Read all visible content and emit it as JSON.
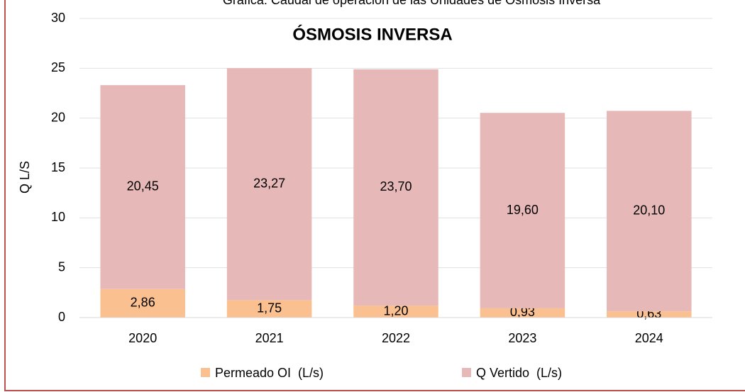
{
  "chart_data": {
    "type": "stacked_bar",
    "subtitle": "Gráfica: Caudal de operación de las Unidades de Ósmosis Inversa",
    "title": "ÓSMOSIS INVERSA",
    "y_label": "Q L/S",
    "categories": [
      "2020",
      "2021",
      "2022",
      "2023",
      "2024"
    ],
    "series": [
      {
        "name": "Permeado OI  (L/s)",
        "color": "#fac090",
        "values": [
          2.86,
          1.75,
          1.2,
          0.93,
          0.63
        ],
        "value_labels": [
          "2,86",
          "1,75",
          "1,20",
          "0,93",
          "0,63"
        ]
      },
      {
        "name": "Q Vertido  (L/s)",
        "color": "#e6b9b8",
        "values": [
          20.45,
          23.27,
          23.7,
          19.6,
          20.1
        ],
        "value_labels": [
          "20,45",
          "23,27",
          "23,70",
          "19,60",
          "20,10"
        ]
      }
    ],
    "ylim": [
      0,
      30
    ],
    "yticks": [
      0,
      5,
      10,
      15,
      20,
      25,
      30
    ],
    "grid": true,
    "legend": "bottom"
  }
}
